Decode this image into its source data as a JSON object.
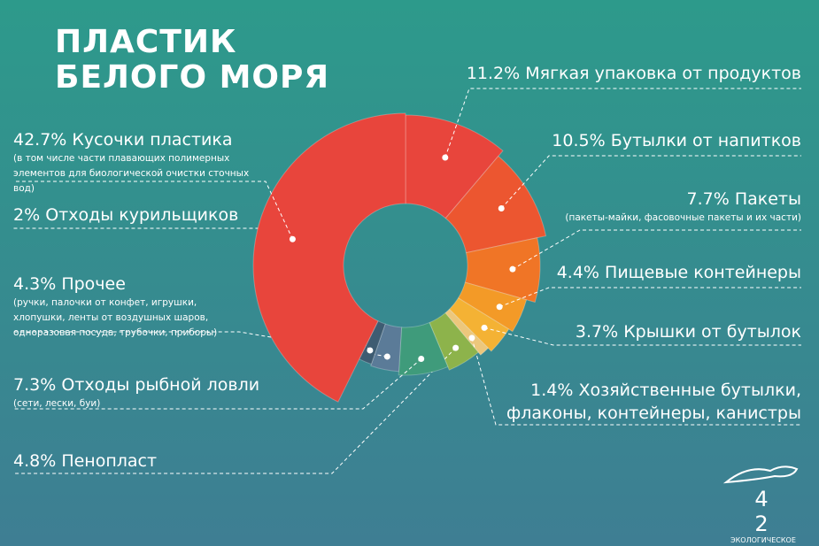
{
  "chart_data": {
    "type": "donut",
    "title": [
      "ПЛАСТИК",
      "БЕЛОГО МОРЯ"
    ],
    "categories": [
      "Мягкая  упаковка от продуктов",
      "Бутылки от напитков",
      "Пакеты",
      "Пищевые контейнеры",
      "Крышки от бутылок",
      "Хозяйственные бутылки, флаконы, контейнеры, канистры",
      "Пенопласт",
      "Отходы рыбной ловли",
      "Прочее",
      "Отходы курильщиков",
      "Кусочки пластика"
    ],
    "values": [
      11.2,
      10.5,
      7.7,
      4.4,
      3.7,
      1.4,
      4.8,
      7.3,
      4.3,
      2,
      42.7
    ],
    "value_labels": [
      "11.2%",
      "10.5%",
      "7.7%",
      "4.4%",
      "3.7%",
      "1.4%",
      "4.8%",
      "7.3%",
      "4.3%",
      "2%",
      "42.7%"
    ],
    "notes": [
      null,
      null,
      "(пакеты-майки, фасовочные пакеты и их части)",
      null,
      null,
      null,
      null,
      "(сети, лески, буи)",
      "(ручки, палочки от конфет, игрушки, хлопушки, ленты от воздушных шаров, одноразовая посуда, трубочки, приборы)",
      null,
      "(в том числе части плавающих полимерных элементов для биологической очистки сточных вод)"
    ],
    "colors": [
      "#e8453c",
      "#ec5630",
      "#f07526",
      "#f39a27",
      "#f4b234",
      "#ecc77c",
      "#8db34b",
      "#3f9b7b",
      "#5b7b98",
      "#3e5c72",
      "#e8453c"
    ]
  },
  "logo": {
    "left": "4",
    "right": "2",
    "text": "ЭКОЛОГИЧЕСКОЕ ДВИЖЕНИЕ"
  }
}
